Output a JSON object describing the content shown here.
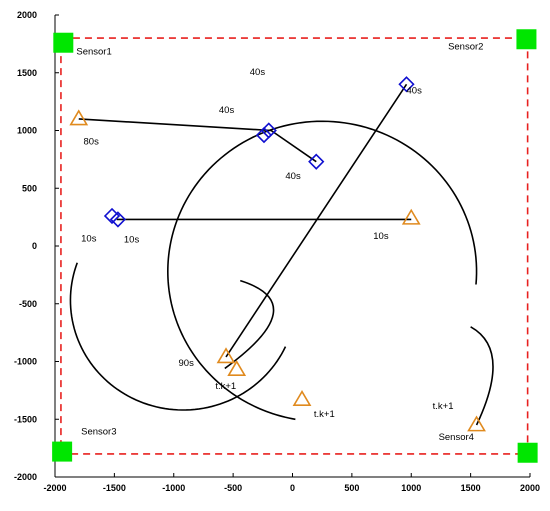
{
  "chart_data": {
    "type": "scatter",
    "xlim": [
      -2000,
      2000
    ],
    "ylim": [
      -2000,
      2000
    ],
    "x_ticks": [
      -2000,
      -1500,
      -1000,
      -500,
      0,
      500,
      1000,
      1500,
      2000
    ],
    "y_ticks": [
      2000,
      1500,
      1000,
      500,
      0,
      -500,
      -1000,
      -1500,
      -2000
    ],
    "x_tick_labels": [
      "-2000",
      "-1500",
      "-1000",
      "-500",
      "0",
      "500",
      "1000",
      "1500",
      "2000"
    ],
    "y_tick_labels": [
      "2000",
      "1500",
      "1000",
      "500",
      "0",
      "-500",
      "-1000",
      "-1500",
      "-2000"
    ],
    "boundary": {
      "x": [
        -1950,
        1980
      ],
      "y": [
        -1800,
        1800
      ],
      "color": "#e8211f",
      "style": "dashed"
    },
    "sensors": [
      {
        "name": "Sensor1",
        "x": -1930,
        "y": 1760
      },
      {
        "name": "Sensor2",
        "x": 1970,
        "y": 1790
      },
      {
        "name": "Sensor3",
        "x": -1940,
        "y": -1780
      },
      {
        "name": "Sensor4",
        "x": 1980,
        "y": -1790
      }
    ],
    "sensor_labels": [
      {
        "text": "Sensor1",
        "x": -1820,
        "y": 1660
      },
      {
        "text": "Sensor2",
        "x": 1310,
        "y": 1700
      },
      {
        "text": "Sensor3",
        "x": -1780,
        "y": -1630
      },
      {
        "text": "Sensor4",
        "x": 1230,
        "y": -1680
      }
    ],
    "sensor_color": "#00e600",
    "start_color": "#e08a1e",
    "end_color": "#1010d0",
    "path_color": "#000000",
    "trajectories": [
      {
        "type": "line",
        "from": [
          -1800,
          1100
        ],
        "to": [
          -180,
          1000
        ]
      },
      {
        "type": "line",
        "from": [
          -180,
          1000
        ],
        "to": [
          200,
          730
        ]
      },
      {
        "type": "line",
        "from": [
          -1480,
          230
        ],
        "to": [
          1000,
          230
        ]
      },
      {
        "type": "line",
        "from": [
          -560,
          -960
        ],
        "to": [
          960,
          1400
        ]
      },
      {
        "type": "circle_arc",
        "center": [
          -920,
          -470
        ],
        "radius": 950,
        "start_deg": -25,
        "end_deg": -200
      },
      {
        "type": "circle_arc",
        "center": [
          250,
          -220
        ],
        "radius": 1300,
        "start_deg": 160,
        "end_deg": -5
      },
      {
        "type": "quad",
        "from": [
          -570,
          -1060
        ],
        "ctrl": [
          180,
          -500
        ],
        "to": [
          -440,
          -300
        ]
      },
      {
        "type": "circle_arc_cw",
        "center": [
          250,
          -220
        ],
        "radius": 1300,
        "start_deg": 160,
        "end_deg": 260
      },
      {
        "type": "quad",
        "from": [
          1550,
          -1550
        ],
        "ctrl": [
          1850,
          -900
        ],
        "to": [
          1500,
          -700
        ]
      }
    ],
    "start_points": [
      {
        "x": -1800,
        "y": 1100
      },
      {
        "x": 1000,
        "y": 240
      },
      {
        "x": -560,
        "y": -960
      },
      {
        "x": -470,
        "y": -1070
      },
      {
        "x": 80,
        "y": -1330
      },
      {
        "x": 1550,
        "y": -1550
      }
    ],
    "end_points": [
      {
        "x": -1520,
        "y": 260
      },
      {
        "x": -1470,
        "y": 230
      },
      {
        "x": -240,
        "y": 960
      },
      {
        "x": -200,
        "y": 1000
      },
      {
        "x": 200,
        "y": 730
      },
      {
        "x": 960,
        "y": 1400
      }
    ],
    "annotations": [
      {
        "text": "80s",
        "x": -1760,
        "y": 880
      },
      {
        "text": "40s",
        "x": -360,
        "y": 1480
      },
      {
        "text": "40s",
        "x": -620,
        "y": 1150
      },
      {
        "text": "40s",
        "x": -60,
        "y": 580
      },
      {
        "text": "40s",
        "x": 960,
        "y": 1320
      },
      {
        "text": "10s",
        "x": -1780,
        "y": 40
      },
      {
        "text": "10s",
        "x": -1420,
        "y": 30
      },
      {
        "text": "10s",
        "x": 680,
        "y": 60
      },
      {
        "text": "90s",
        "x": -960,
        "y": -1040
      },
      {
        "text": "t.k+1",
        "x": -650,
        "y": -1240
      },
      {
        "text": "t.k+1",
        "x": 180,
        "y": -1480
      },
      {
        "text": "t.k+1",
        "x": 1180,
        "y": -1410
      }
    ]
  }
}
